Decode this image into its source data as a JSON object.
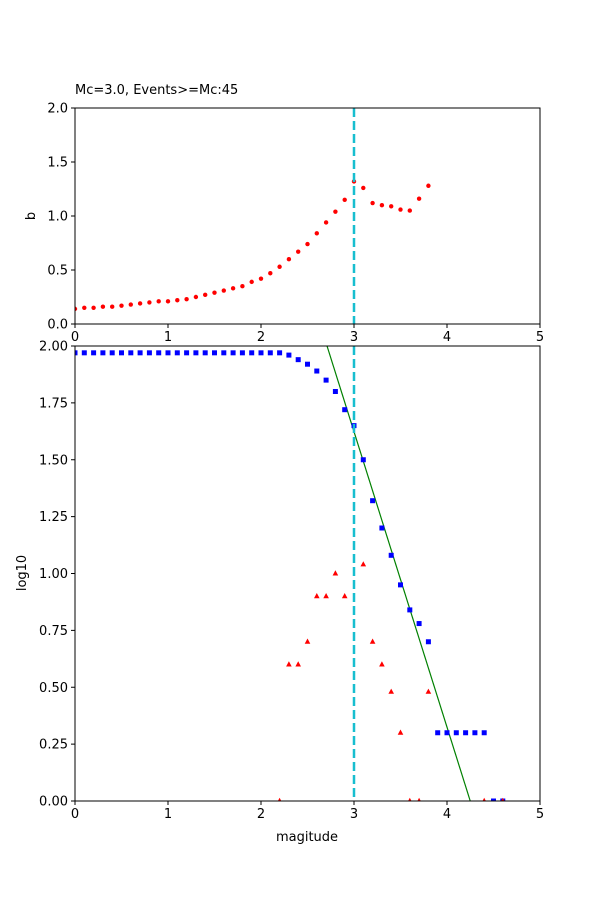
{
  "chart_data": [
    {
      "type": "scatter",
      "title": "Mc=3.0, Events>=Mc:45",
      "xlabel": "",
      "ylabel": "b",
      "xlim": [
        0,
        5
      ],
      "ylim": [
        0,
        2
      ],
      "xticks": [
        "0",
        "1",
        "2",
        "3",
        "4",
        "5"
      ],
      "yticks": [
        "0.0",
        "0.5",
        "1.0",
        "1.5",
        "2.0"
      ],
      "grid": false,
      "vline": {
        "x": 3.0,
        "color": "#17becf",
        "style": "dashed"
      },
      "series": [
        {
          "color": "#ff0000",
          "marker": "circle",
          "x": [
            0.0,
            0.1,
            0.2,
            0.3,
            0.4,
            0.5,
            0.6,
            0.7,
            0.8,
            0.9,
            1.0,
            1.1,
            1.2,
            1.3,
            1.4,
            1.5,
            1.6,
            1.7,
            1.8,
            1.9,
            2.0,
            2.1,
            2.2,
            2.3,
            2.4,
            2.5,
            2.6,
            2.7,
            2.8,
            2.9,
            3.0,
            3.1,
            3.2,
            3.3,
            3.4,
            3.5,
            3.6,
            3.7,
            3.8
          ],
          "y": [
            0.14,
            0.15,
            0.15,
            0.16,
            0.16,
            0.17,
            0.18,
            0.19,
            0.2,
            0.21,
            0.21,
            0.22,
            0.23,
            0.25,
            0.27,
            0.29,
            0.31,
            0.33,
            0.35,
            0.39,
            0.42,
            0.47,
            0.53,
            0.6,
            0.67,
            0.74,
            0.84,
            0.94,
            1.04,
            1.15,
            1.32,
            1.26,
            1.12,
            1.1,
            1.09,
            1.06,
            1.05,
            1.16,
            1.28
          ]
        }
      ]
    },
    {
      "type": "scatter",
      "title": "",
      "xlabel": "magitude",
      "ylabel": "log10",
      "xlim": [
        0,
        5
      ],
      "ylim": [
        0,
        2
      ],
      "xticks": [
        "0",
        "1",
        "2",
        "3",
        "4",
        "5"
      ],
      "yticks": [
        "0.00",
        "0.25",
        "0.50",
        "0.75",
        "1.00",
        "1.25",
        "1.50",
        "1.75",
        "2.00"
      ],
      "grid": false,
      "vline": {
        "x": 3.0,
        "color": "#17becf",
        "style": "dashed"
      },
      "fit_line": {
        "color": "#008000",
        "points": [
          [
            2.71,
            2.0
          ],
          [
            4.25,
            0.0
          ]
        ]
      },
      "series": [
        {
          "color": "#0000ff",
          "marker": "square",
          "x": [
            0.0,
            0.1,
            0.2,
            0.3,
            0.4,
            0.5,
            0.6,
            0.7,
            0.8,
            0.9,
            1.0,
            1.1,
            1.2,
            1.3,
            1.4,
            1.5,
            1.6,
            1.7,
            1.8,
            1.9,
            2.0,
            2.1,
            2.2,
            2.3,
            2.4,
            2.5,
            2.6,
            2.7,
            2.8,
            2.9,
            3.0,
            3.1,
            3.2,
            3.3,
            3.4,
            3.5,
            3.6,
            3.7,
            3.8,
            3.9,
            4.0,
            4.1,
            4.2,
            4.3,
            4.4,
            4.5,
            4.6
          ],
          "y": [
            1.97,
            1.97,
            1.97,
            1.97,
            1.97,
            1.97,
            1.97,
            1.97,
            1.97,
            1.97,
            1.97,
            1.97,
            1.97,
            1.97,
            1.97,
            1.97,
            1.97,
            1.97,
            1.97,
            1.97,
            1.97,
            1.97,
            1.97,
            1.96,
            1.94,
            1.92,
            1.89,
            1.85,
            1.8,
            1.72,
            1.65,
            1.5,
            1.32,
            1.2,
            1.08,
            0.95,
            0.84,
            0.78,
            0.7,
            0.3,
            0.3,
            0.3,
            0.3,
            0.3,
            0.3,
            0.0,
            0.0
          ]
        },
        {
          "color": "#ff0000",
          "marker": "triangle",
          "x": [
            2.2,
            2.3,
            2.4,
            2.5,
            2.6,
            2.7,
            2.8,
            2.9,
            3.1,
            3.2,
            3.3,
            3.4,
            3.5,
            3.6,
            3.7,
            3.8,
            4.4,
            4.6
          ],
          "y": [
            0.0,
            0.6,
            0.6,
            0.7,
            0.9,
            0.9,
            1.0,
            0.9,
            1.04,
            0.7,
            0.6,
            0.48,
            0.3,
            0.0,
            0.0,
            0.48,
            0.0,
            0.0
          ]
        }
      ]
    }
  ]
}
